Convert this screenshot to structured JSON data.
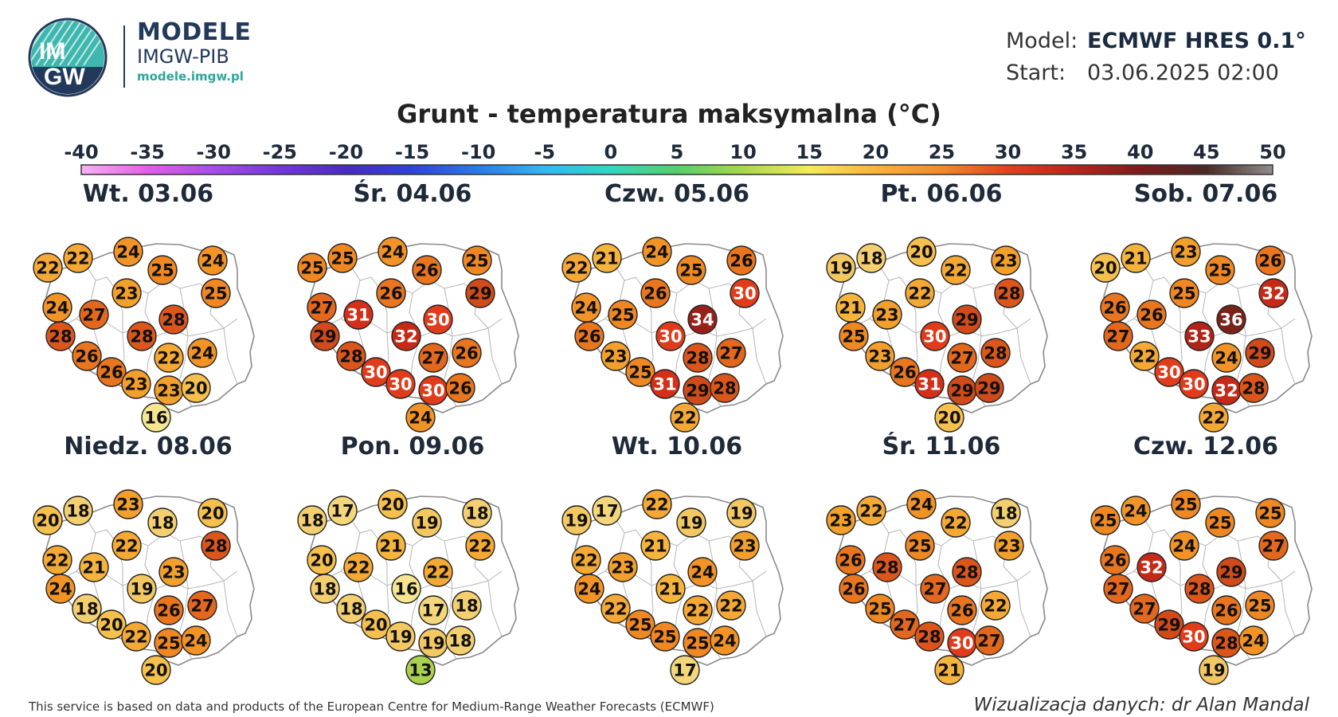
{
  "header": {
    "brand_title": "MODELE",
    "brand_subtitle": "IMGW-PIB",
    "brand_url": "modele.imgw.pl",
    "logo_text_top": "IM",
    "logo_text_bottom": "GW",
    "model_label": "Model:",
    "model_value": "ECMWF HRES 0.1°",
    "start_label": "Start:",
    "start_value": "03.06.2025 02:00"
  },
  "title": "Grunt - temperatura maksymalna (°C)",
  "colorbar": {
    "ticks": [
      "-40",
      "-35",
      "-30",
      "-25",
      "-20",
      "-15",
      "-10",
      "-5",
      "0",
      "5",
      "10",
      "15",
      "20",
      "25",
      "30",
      "35",
      "40",
      "45",
      "50"
    ],
    "colors": [
      "#f7b2f4",
      "#e35ee6",
      "#a64de9",
      "#7337d9",
      "#4a2bc0",
      "#2f43d7",
      "#2b7ae8",
      "#35b7f4",
      "#33d6c0",
      "#56cf6a",
      "#a8d84b",
      "#f4ea5c",
      "#f9b23a",
      "#f18a2c",
      "#e0421f",
      "#b8251b",
      "#7c1d1b",
      "#4a2a26",
      "#8f8d8d"
    ]
  },
  "map_data": {
    "scale_colors": {
      "13": "#a9d14e",
      "16": "#f6e690",
      "17": "#f4d77a",
      "18": "#f4cf70",
      "19": "#f3c862",
      "20": "#f6c04d",
      "21": "#f6b43d",
      "22": "#f5a934",
      "23": "#f39f2b",
      "24": "#f29326",
      "25": "#ef8722",
      "26": "#e9751f",
      "27": "#e3671d",
      "28": "#dc561b",
      "29": "#d14a1a",
      "30": "#e03b1a",
      "31": "#d42f18",
      "32": "#c62a17",
      "33": "#b02418",
      "34": "#972119",
      "36": "#7a2219"
    },
    "days": [
      {
        "label": "Wt. 03.06",
        "values": [
          22,
          22,
          24,
          25,
          24,
          25,
          23,
          24,
          27,
          28,
          28,
          28,
          26,
          22,
          24,
          26,
          23,
          23,
          20,
          16
        ]
      },
      {
        "label": "Śr. 04.06",
        "values": [
          25,
          25,
          24,
          26,
          25,
          29,
          26,
          27,
          31,
          30,
          29,
          32,
          28,
          27,
          26,
          30,
          30,
          30,
          26,
          24
        ]
      },
      {
        "label": "Czw. 05.06",
        "values": [
          22,
          21,
          24,
          25,
          26,
          30,
          26,
          24,
          25,
          34,
          26,
          30,
          23,
          28,
          27,
          25,
          31,
          29,
          28,
          22
        ]
      },
      {
        "label": "Pt. 06.06",
        "values": [
          19,
          18,
          20,
          22,
          23,
          28,
          22,
          21,
          23,
          29,
          25,
          30,
          23,
          27,
          28,
          26,
          31,
          29,
          29,
          20
        ]
      },
      {
        "label": "Sob. 07.06",
        "values": [
          20,
          21,
          23,
          25,
          26,
          32,
          25,
          26,
          26,
          36,
          27,
          33,
          22,
          24,
          29,
          30,
          30,
          32,
          28,
          22
        ]
      },
      {
        "label": "Niedz. 08.06",
        "values": [
          20,
          18,
          23,
          18,
          20,
          28,
          22,
          22,
          21,
          23,
          24,
          19,
          18,
          26,
          27,
          20,
          22,
          25,
          24,
          20
        ]
      },
      {
        "label": "Pon. 09.06",
        "values": [
          18,
          17,
          20,
          19,
          18,
          22,
          21,
          20,
          22,
          22,
          18,
          16,
          18,
          17,
          18,
          20,
          19,
          19,
          18,
          13
        ]
      },
      {
        "label": "Wt. 10.06",
        "values": [
          19,
          17,
          22,
          19,
          19,
          23,
          21,
          22,
          23,
          24,
          24,
          21,
          22,
          22,
          22,
          25,
          25,
          25,
          24,
          17
        ]
      },
      {
        "label": "Śr. 11.06",
        "values": [
          23,
          22,
          24,
          22,
          18,
          23,
          25,
          26,
          28,
          28,
          26,
          27,
          25,
          26,
          22,
          27,
          28,
          30,
          27,
          21
        ]
      },
      {
        "label": "Czw. 12.06",
        "values": [
          25,
          24,
          25,
          25,
          25,
          27,
          24,
          26,
          32,
          29,
          27,
          28,
          27,
          26,
          25,
          29,
          30,
          28,
          24,
          19
        ]
      }
    ]
  },
  "footer": {
    "credit": "This service is based on data and products of the European Centre for Medium-Range Weather Forecasts (ECMWF)",
    "author": "Wizualizacja danych: dr Alan Mandal"
  }
}
